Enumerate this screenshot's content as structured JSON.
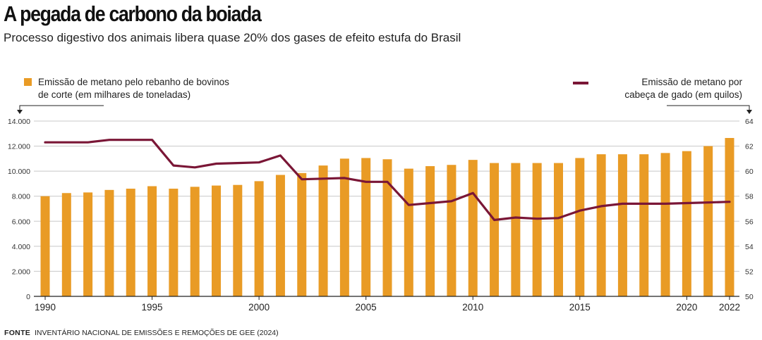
{
  "header": {
    "title": "A pegada de carbono da boiada",
    "subtitle": "Processo digestivo dos animais libera quase 20% dos gases de efeito estufa do Brasil"
  },
  "legend": {
    "bars_line1": "Emissão de metano pelo rebanho de bovinos",
    "bars_line2": "de corte (em milhares de toneladas)",
    "line_line1": "Emissão de metano por",
    "line_line2": "cabeça de gado (em quilos)"
  },
  "footer": {
    "source_label": "FONTE",
    "source_text": "INVENTÁRIO NACIONAL DE EMISSÕES E REMOÇÕES DE GEE (2024)"
  },
  "colors": {
    "bar": "#e99b25",
    "line": "#7a1636",
    "grid": "#c8c8c8"
  },
  "chart_data": {
    "type": "bar",
    "title": "A pegada de carbono da boiada",
    "x": [
      1990,
      1991,
      1992,
      1993,
      1994,
      1995,
      1996,
      1997,
      1998,
      1999,
      2000,
      2001,
      2002,
      2003,
      2004,
      2005,
      2006,
      2007,
      2008,
      2009,
      2010,
      2011,
      2012,
      2013,
      2014,
      2015,
      2016,
      2017,
      2018,
      2019,
      2020,
      2021,
      2022
    ],
    "x_tick_labels": [
      "1990",
      "1995",
      "2000",
      "2005",
      "2010",
      "2015",
      "2020",
      "2022"
    ],
    "series": [
      {
        "name": "Emissão de metano pelo rebanho de bovinos de corte (em milhares de toneladas)",
        "type": "bar",
        "axis": "left",
        "values": [
          8000,
          8250,
          8300,
          8500,
          8600,
          8800,
          8600,
          8750,
          8850,
          8900,
          9200,
          9700,
          9850,
          10450,
          11000,
          11050,
          10950,
          10200,
          10400,
          10500,
          10900,
          10650,
          10650,
          10650,
          10650,
          11050,
          11350,
          11350,
          11350,
          11450,
          11600,
          12000,
          12650
        ]
      },
      {
        "name": "Emissão de metano por cabeça de gado (em quilos)",
        "type": "line",
        "axis": "right",
        "values": [
          62.3,
          62.3,
          62.3,
          62.5,
          62.5,
          62.5,
          60.45,
          60.3,
          60.6,
          60.65,
          60.7,
          61.25,
          59.35,
          59.4,
          59.45,
          59.15,
          59.15,
          57.3,
          57.45,
          57.6,
          58.25,
          56.1,
          56.3,
          56.2,
          56.25,
          56.85,
          57.2,
          57.4,
          57.4,
          57.4,
          57.45,
          57.5,
          57.55
        ]
      }
    ],
    "y_left": {
      "ylim": [
        0,
        14000
      ],
      "ticks": [
        "0",
        "2.000",
        "4.000",
        "6.000",
        "8.000",
        "10.000",
        "12.000",
        "14.000"
      ]
    },
    "y_right": {
      "ylim": [
        50,
        64
      ],
      "ticks": [
        "50",
        "52",
        "54",
        "56",
        "58",
        "60",
        "62",
        "64"
      ]
    },
    "grid": true
  }
}
